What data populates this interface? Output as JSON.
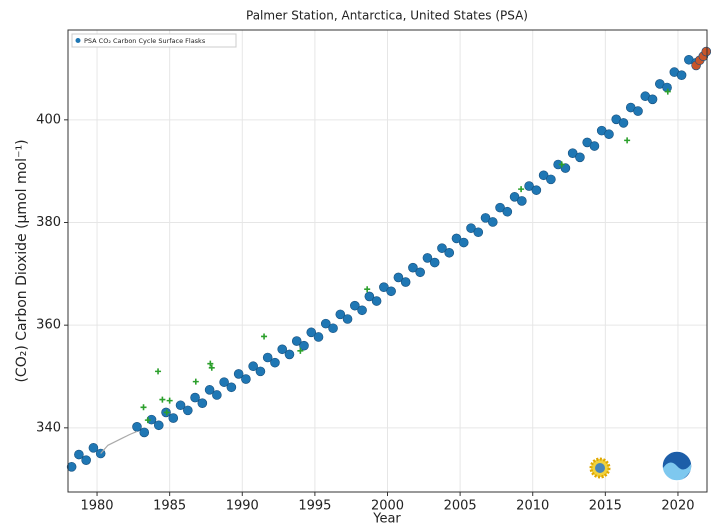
{
  "chart_data": {
    "type": "scatter",
    "title": "Palmer Station, Antarctica, United States (PSA)",
    "x_label": "Year",
    "y_label": "(CO₂) Carbon Dioxide (μmol mol⁻¹)",
    "xlim": [
      1978,
      2022
    ],
    "ylim": [
      327.5,
      417.5
    ],
    "xticks": [
      1980,
      1985,
      1990,
      1995,
      2000,
      2005,
      2010,
      2015,
      2020
    ],
    "yticks": [
      340,
      360,
      380,
      400
    ],
    "grid": true,
    "legend": "upper left",
    "series": [
      {
        "name": "PSA CO₂ Carbon Cycle Surface Flasks",
        "color": "#1f77b4",
        "x": [
          1978.25,
          1978.75,
          1979.25,
          1979.75,
          1980.25,
          1982.75,
          1983.25,
          1983.75,
          1984.25,
          1984.75,
          1985.25,
          1985.75,
          1986.25,
          1986.75,
          1987.25,
          1987.75,
          1988.25,
          1988.75,
          1989.25,
          1989.75,
          1990.25,
          1990.75,
          1991.25,
          1991.75,
          1992.25,
          1992.75,
          1993.25,
          1993.75,
          1994.25,
          1994.75,
          1995.25,
          1995.75,
          1996.25,
          1996.75,
          1997.25,
          1997.75,
          1998.25,
          1998.75,
          1999.25,
          1999.75,
          2000.25,
          2000.75,
          2001.25,
          2001.75,
          2002.25,
          2002.75,
          2003.25,
          2003.75,
          2004.25,
          2004.75,
          2005.25,
          2005.75,
          2006.25,
          2006.75,
          2007.25,
          2007.75,
          2008.25,
          2008.75,
          2009.25,
          2009.75,
          2010.25,
          2010.75,
          2011.25,
          2011.75,
          2012.25,
          2012.75,
          2013.25,
          2013.75,
          2014.25,
          2014.75,
          2015.25,
          2015.75,
          2016.25,
          2016.75,
          2017.25,
          2017.75,
          2018.25,
          2018.75,
          2019.25,
          2019.75,
          2020.25,
          2020.75,
          2021.25
        ],
        "values": [
          332.4,
          334.8,
          333.7,
          336.1,
          335.0,
          340.2,
          339.1,
          341.6,
          340.5,
          343.0,
          341.9,
          344.4,
          343.4,
          345.9,
          344.8,
          347.4,
          346.4,
          348.9,
          347.9,
          350.5,
          349.5,
          352.0,
          351.0,
          353.7,
          352.7,
          355.3,
          354.3,
          356.9,
          356.0,
          358.6,
          357.7,
          360.3,
          359.4,
          362.1,
          361.2,
          363.8,
          362.9,
          365.6,
          364.7,
          367.4,
          366.6,
          369.3,
          368.4,
          371.2,
          370.3,
          373.1,
          372.2,
          375.0,
          374.1,
          376.9,
          376.1,
          378.9,
          378.1,
          380.9,
          380.1,
          382.9,
          382.1,
          385.0,
          384.2,
          387.1,
          386.3,
          389.2,
          388.4,
          391.3,
          390.6,
          393.5,
          392.7,
          395.6,
          394.9,
          397.9,
          397.2,
          400.1,
          399.4,
          402.4,
          401.7,
          404.6,
          404.0,
          407.0,
          406.3,
          409.3,
          408.7,
          411.7,
          411.1
        ]
      },
      {
        "color": "#aaaaaa",
        "mode": "line",
        "x": [
          1980.25,
          1980.75,
          1981.25,
          1981.75,
          1982.25,
          1982.75
        ],
        "values": [
          335.0,
          336.6,
          337.3,
          338.0,
          338.7,
          339.3
        ]
      },
      {
        "color": "#2ca02c",
        "marker": "plus",
        "x": [
          1983.2,
          1983.5,
          1984.2,
          1984.5,
          1984.8,
          1985.0,
          1986.8,
          1987.8,
          1987.9,
          1991.5,
          1994.0,
          1998.6,
          2009.2,
          2012.0,
          2016.5,
          2019.3
        ],
        "values": [
          344.0,
          341.5,
          351.0,
          345.5,
          343.0,
          345.3,
          349.0,
          352.5,
          351.7,
          357.8,
          355.0,
          367.0,
          386.5,
          391.3,
          396.0,
          405.5
        ]
      },
      {
        "color": "#c8552a",
        "x": [
          2021.25,
          2021.5,
          2021.75,
          2021.95
        ],
        "values": [
          410.6,
          411.6,
          412.4,
          413.3
        ]
      }
    ]
  }
}
